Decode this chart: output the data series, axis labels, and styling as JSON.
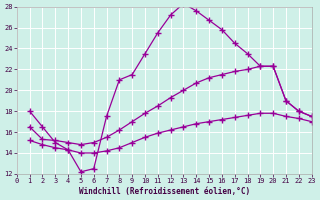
{
  "xlabel": "Windchill (Refroidissement éolien,°C)",
  "background_color": "#cff0e8",
  "plot_bg_color": "#cff0e8",
  "line_color": "#990099",
  "marker": "+",
  "markersize": 4,
  "linewidth": 0.9,
  "markeredgewidth": 1.0,
  "xlim": [
    0,
    23
  ],
  "ylim": [
    12,
    28
  ],
  "xticks": [
    0,
    1,
    2,
    3,
    4,
    5,
    6,
    7,
    8,
    9,
    10,
    11,
    12,
    13,
    14,
    15,
    16,
    17,
    18,
    19,
    20,
    21,
    22,
    23
  ],
  "yticks": [
    12,
    14,
    16,
    18,
    20,
    22,
    24,
    26,
    28
  ],
  "lines": [
    {
      "x": [
        1,
        2,
        3,
        4,
        5,
        6,
        7,
        8,
        9,
        10,
        11,
        12,
        13,
        14,
        15,
        16,
        17,
        18,
        19,
        20,
        21,
        22,
        23
      ],
      "y": [
        18.0,
        16.5,
        15.0,
        14.3,
        12.2,
        12.5,
        17.5,
        21.0,
        21.5,
        23.5,
        25.5,
        27.2,
        28.3,
        27.6,
        26.7,
        25.8,
        24.5,
        23.5,
        22.3,
        22.3,
        19.0,
        18.0,
        17.5
      ]
    },
    {
      "x": [
        1,
        2,
        3,
        4,
        5,
        6,
        7,
        8,
        9,
        10,
        11,
        12,
        13,
        14,
        15,
        16,
        17,
        18,
        19,
        20,
        21,
        22,
        23
      ],
      "y": [
        16.5,
        15.3,
        15.2,
        15.0,
        14.8,
        15.0,
        15.5,
        16.2,
        17.0,
        17.8,
        18.5,
        19.3,
        20.0,
        20.7,
        21.2,
        21.5,
        21.8,
        22.0,
        22.3,
        22.3,
        19.0,
        18.0,
        17.5
      ]
    },
    {
      "x": [
        1,
        2,
        3,
        4,
        5,
        6,
        7,
        8,
        9,
        10,
        11,
        12,
        13,
        14,
        15,
        16,
        17,
        18,
        19,
        20,
        21,
        22,
        23
      ],
      "y": [
        15.2,
        14.8,
        14.5,
        14.3,
        14.0,
        14.0,
        14.2,
        14.5,
        15.0,
        15.5,
        15.9,
        16.2,
        16.5,
        16.8,
        17.0,
        17.2,
        17.4,
        17.6,
        17.8,
        17.8,
        17.5,
        17.3,
        17.0
      ]
    }
  ]
}
